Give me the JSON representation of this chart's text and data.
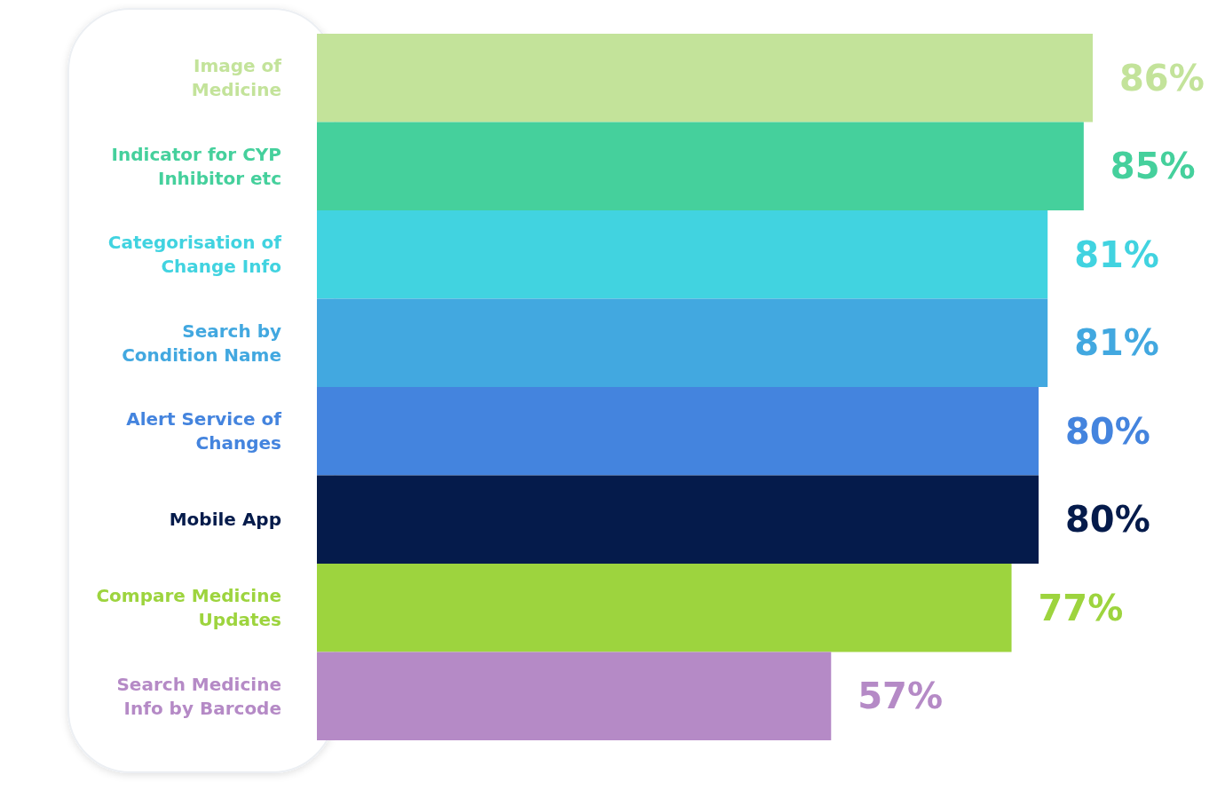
{
  "chart_data": {
    "type": "bar",
    "orientation": "horizontal",
    "categories": [
      "Image of Medicine",
      "Indicator for CYP Inhibitor etc",
      "Categorisation of Change Info",
      "Search by Condition Name",
      "Alert Service of Changes",
      "Mobile App",
      "Compare Medicine Updates",
      "Search Medicine Info by Barcode"
    ],
    "values": [
      86,
      85,
      81,
      81,
      80,
      80,
      77,
      57
    ],
    "value_labels": [
      "86%",
      "85%",
      "81%",
      "81%",
      "80%",
      "80%",
      "77%",
      "57%"
    ],
    "colors": [
      "#c3e39a",
      "#45d09c",
      "#41d3e0",
      "#42a8e0",
      "#4484de",
      "#051b4b",
      "#9dd43e",
      "#b58ac6"
    ]
  }
}
